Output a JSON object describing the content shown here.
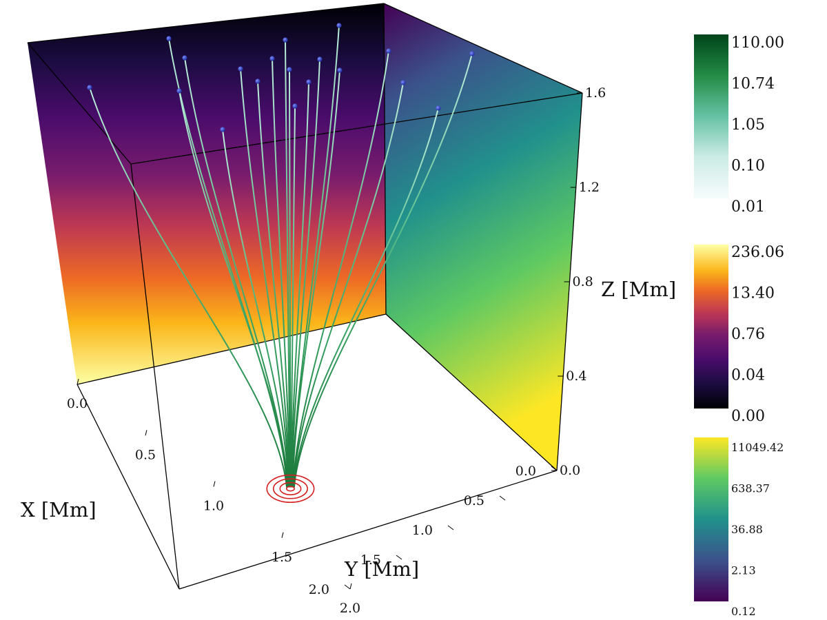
{
  "chart_data": {
    "type": "3d-field-line-plot",
    "axes": {
      "x": {
        "label": "X [Mm]",
        "range": [
          0.0,
          2.0
        ],
        "ticks": [
          "0.0",
          "0.5",
          "1.0",
          "1.5",
          "2.0"
        ]
      },
      "y": {
        "label": "Y [Mm]",
        "range": [
          0.0,
          2.0
        ],
        "ticks": [
          "0.0",
          "0.5",
          "1.0",
          "1.5",
          "2.0"
        ]
      },
      "z": {
        "label": "Z [Mm]",
        "range": [
          0.0,
          1.6
        ],
        "ticks": [
          "0.0",
          "0.4",
          "0.8",
          "1.2",
          "1.6"
        ]
      }
    },
    "field_lines": {
      "count": 19,
      "footpoint": {
        "x": 1.6,
        "y": 1.2,
        "z": 0.0
      },
      "line_color_scale": "BuGn",
      "seed_marker_color": "#2b3fc0"
    },
    "contours": {
      "color": "#d42020",
      "levels": 4,
      "center": {
        "x": 1.6,
        "y": 1.2
      }
    },
    "colorbars": [
      {
        "colormap": "BuGn",
        "tick_labels": [
          "110.00",
          "10.74",
          "1.05",
          "0.10",
          "0.01"
        ]
      },
      {
        "colormap": "inferno",
        "tick_labels": [
          "236.06",
          "13.40",
          "0.76",
          "0.04",
          "0.00"
        ]
      },
      {
        "colormap": "viridis",
        "tick_labels": [
          "11049.42",
          "638.37",
          "36.88",
          "2.13",
          "0.12"
        ]
      }
    ],
    "grid": false,
    "legend_placement": "right"
  }
}
